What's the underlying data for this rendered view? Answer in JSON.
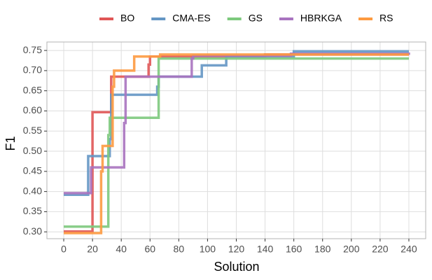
{
  "chart_data": {
    "type": "line",
    "step": true,
    "x_label": "Solution",
    "y_label": "F1",
    "xlim": [
      -11.7,
      251.7
    ],
    "ylim": [
      0.283,
      0.771
    ],
    "xticks": [
      0,
      20,
      40,
      60,
      80,
      100,
      120,
      140,
      160,
      180,
      200,
      220,
      240
    ],
    "yticks": [
      {
        "value": 0.3,
        "label": "0.30"
      },
      {
        "value": 0.35,
        "label": "0.35"
      },
      {
        "value": 0.4,
        "label": "0.40"
      },
      {
        "value": 0.45,
        "label": "0.45"
      },
      {
        "value": 0.5,
        "label": "0.50"
      },
      {
        "value": 0.55,
        "label": "0.55"
      },
      {
        "value": 0.6,
        "label": "0.60"
      },
      {
        "value": 0.65,
        "label": "0.65"
      },
      {
        "value": 0.7,
        "label": "0.70"
      },
      {
        "value": 0.75,
        "label": "0.75"
      }
    ],
    "grid": true,
    "legend": "top",
    "series": [
      {
        "name": "BO",
        "color": "#e05656",
        "x": [
          0,
          20,
          33,
          59,
          60,
          140,
          240
        ],
        "values": [
          0.301,
          0.597,
          0.685,
          0.715,
          0.735,
          0.74,
          0.74
        ]
      },
      {
        "name": "CMA-ES",
        "color": "#6496c4",
        "x": [
          0,
          17,
          32,
          33,
          65,
          66,
          96,
          113,
          160,
          240
        ],
        "values": [
          0.392,
          0.488,
          0.53,
          0.64,
          0.66,
          0.685,
          0.713,
          0.735,
          0.748,
          0.748
        ]
      },
      {
        "name": "GS",
        "color": "#7dc97d",
        "x": [
          0,
          31,
          32,
          66,
          240
        ],
        "values": [
          0.313,
          0.54,
          0.583,
          0.73,
          0.73
        ]
      },
      {
        "name": "HBRKGA",
        "color": "#a873bf",
        "x": [
          0,
          19,
          42,
          43,
          89,
          90,
          158,
          240
        ],
        "values": [
          0.396,
          0.46,
          0.57,
          0.685,
          0.73,
          0.737,
          0.742,
          0.745
        ]
      },
      {
        "name": "RS",
        "color": "#fd9a40",
        "x": [
          0,
          26,
          27,
          34,
          35,
          49,
          67,
          240
        ],
        "values": [
          0.297,
          0.45,
          0.513,
          0.66,
          0.7,
          0.735,
          0.74,
          0.74
        ]
      }
    ]
  }
}
